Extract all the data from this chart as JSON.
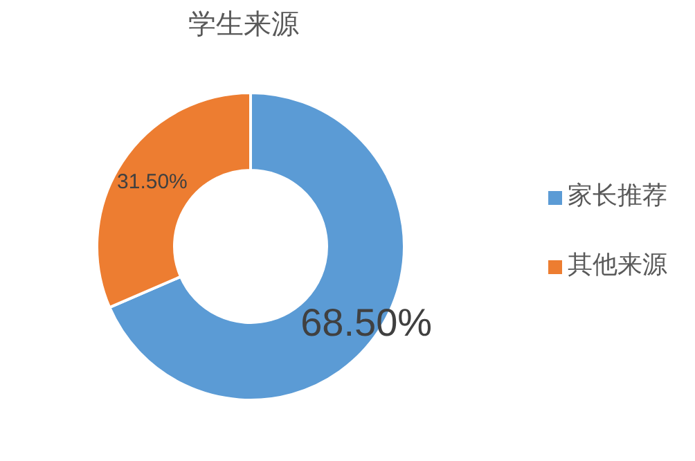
{
  "chart_data": {
    "type": "donut",
    "title": "学生来源",
    "categories": [
      "家长推荐",
      "其他来源"
    ],
    "values": [
      68.5,
      31.5
    ],
    "colors": [
      "#5b9bd5",
      "#ed7d31"
    ],
    "value_labels": [
      "68.50%",
      "31.50%"
    ],
    "legend": "right"
  }
}
